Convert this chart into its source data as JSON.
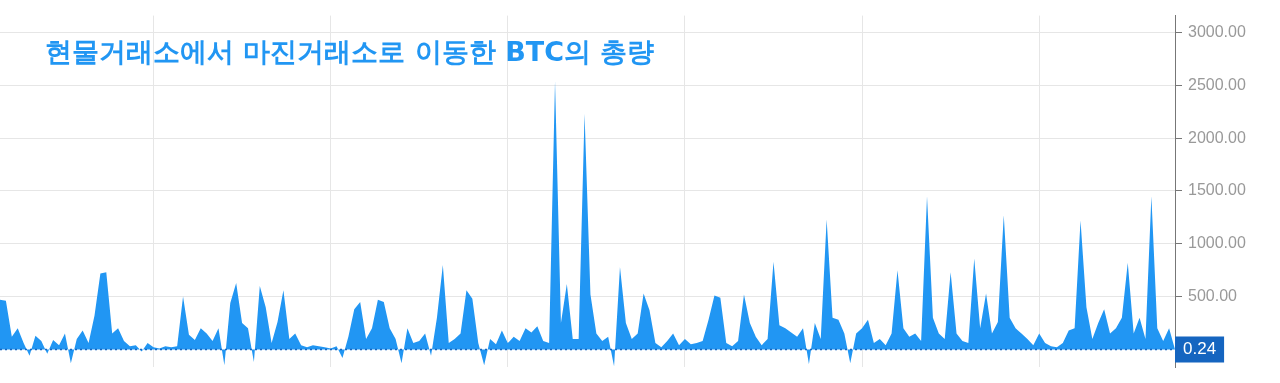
{
  "chart_data": {
    "type": "area",
    "title": "현물거래소에서 마진거래소로 이동한 BTC의 총량",
    "categories": [
      null,
      null,
      null,
      null,
      null,
      null,
      null,
      null,
      null,
      null,
      null,
      null,
      null,
      null,
      null,
      null,
      null,
      null,
      null,
      null,
      null,
      null,
      null,
      null,
      null,
      null,
      null,
      null,
      null,
      null,
      null,
      null,
      null,
      null,
      null,
      null,
      null,
      null,
      null,
      null,
      null,
      null,
      null,
      null,
      null,
      null,
      null,
      null,
      null,
      null,
      null,
      null,
      null,
      null,
      null,
      null,
      null,
      null,
      null,
      null,
      null,
      null,
      null,
      null,
      null,
      null,
      null,
      null,
      null,
      null,
      null,
      null,
      null,
      null,
      null,
      null,
      null,
      null,
      null,
      null,
      null,
      null,
      null,
      null,
      null,
      null,
      null,
      null,
      null,
      null,
      null,
      null,
      null,
      null,
      null,
      null,
      null,
      null,
      null,
      null,
      null,
      null,
      null,
      null,
      null,
      null,
      null,
      null,
      null,
      null,
      null,
      null,
      null,
      null,
      null,
      null,
      null,
      null,
      null,
      null,
      null,
      null,
      null,
      null,
      null,
      null,
      null,
      null,
      null,
      null,
      null,
      null,
      null,
      null,
      null,
      null,
      null,
      null,
      null,
      null,
      null,
      null,
      null,
      null,
      null,
      null,
      null,
      null,
      null,
      null,
      null,
      null,
      null,
      null,
      null,
      null,
      null,
      null,
      null,
      null,
      null,
      null,
      null,
      null,
      null,
      null,
      null,
      null,
      null,
      null,
      null,
      null,
      null,
      null,
      null,
      null,
      null,
      null,
      null,
      null,
      null,
      null,
      null,
      null,
      null,
      null,
      null,
      null,
      null,
      null,
      null,
      null,
      null,
      null,
      null,
      null,
      null,
      null,
      null,
      null
    ],
    "series": [
      {
        "color": "#2196f3",
        "values": [
          470,
          460,
          120,
          200,
          60,
          -60,
          130,
          80,
          -40,
          90,
          40,
          150,
          -130,
          100,
          180,
          60,
          320,
          720,
          730,
          150,
          200,
          80,
          30,
          40,
          -20,
          60,
          20,
          10,
          30,
          20,
          30,
          500,
          140,
          90,
          200,
          150,
          80,
          200,
          -150,
          440,
          630,
          250,
          200,
          -120,
          600,
          400,
          60,
          260,
          560,
          100,
          150,
          40,
          20,
          40,
          30,
          20,
          10,
          30,
          -80,
          120,
          380,
          450,
          100,
          200,
          470,
          450,
          200,
          100,
          -130,
          200,
          60,
          80,
          150,
          -60,
          300,
          800,
          60,
          100,
          150,
          560,
          480,
          60,
          -150,
          100,
          50,
          180,
          60,
          120,
          80,
          200,
          160,
          220,
          80,
          60,
          2540,
          250,
          620,
          100,
          100,
          2230,
          520,
          150,
          80,
          120,
          -160,
          780,
          250,
          100,
          150,
          530,
          370,
          60,
          20,
          80,
          150,
          40,
          100,
          50,
          60,
          80,
          280,
          510,
          490,
          60,
          30,
          80,
          520,
          250,
          120,
          40,
          100,
          830,
          230,
          200,
          160,
          120,
          200,
          -140,
          250,
          100,
          1230,
          300,
          280,
          150,
          -130,
          150,
          200,
          280,
          60,
          100,
          40,
          150,
          750,
          200,
          120,
          150,
          80,
          1450,
          300,
          150,
          100,
          730,
          150,
          80,
          60,
          860,
          200,
          530,
          150,
          260,
          1270,
          300,
          200,
          150,
          100,
          40,
          150,
          60,
          30,
          20,
          60,
          180,
          200,
          1220,
          400,
          100,
          250,
          380,
          150,
          200,
          300,
          820,
          150,
          300,
          100,
          1450,
          200,
          80,
          200,
          0.24
        ]
      }
    ],
    "ylim": [
      -170,
      3160
    ],
    "yticks": [
      {
        "value": 500,
        "label": "500.00"
      },
      {
        "value": 1000,
        "label": "1000.00"
      },
      {
        "value": 1500,
        "label": "1500.00"
      },
      {
        "value": 2000,
        "label": "2000.00"
      },
      {
        "value": 2500,
        "label": "2500.00"
      },
      {
        "value": 3000,
        "label": "3000.00"
      }
    ],
    "ref_lines": [
      {
        "axis": "y",
        "value": 0.24,
        "label": "0.24",
        "color": "#1565c0",
        "line_style": "dotted"
      }
    ],
    "grid": true,
    "legend": false,
    "marker": "none",
    "tick_labels": "y"
  }
}
